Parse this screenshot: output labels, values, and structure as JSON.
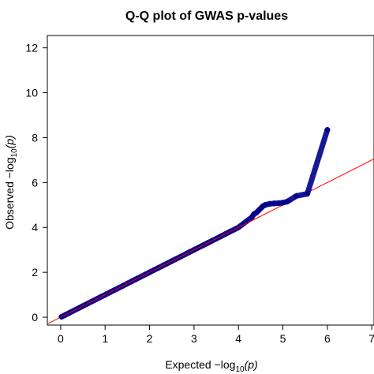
{
  "chart_data": {
    "type": "scatter",
    "title": "Q-Q plot of GWAS p-values",
    "xlabel": {
      "prefix": "Expected  −log",
      "sub": "10",
      "suffix": "(p)"
    },
    "ylabel": {
      "prefix": "Observed  −log",
      "sub": "10",
      "suffix": "(p)"
    },
    "xlim": [
      0,
      7
    ],
    "ylim": [
      0,
      12
    ],
    "x_ticks": [
      0,
      1,
      2,
      3,
      4,
      5,
      6,
      7
    ],
    "y_ticks": [
      0,
      2,
      4,
      6,
      8,
      10,
      12
    ],
    "point_color": "#00008b",
    "line_color": "#ff0000",
    "reference_line": {
      "slope": 1,
      "intercept": 0
    },
    "series": [
      {
        "points": [
          [
            0.02,
            0.02
          ],
          [
            0.1,
            0.1
          ],
          [
            0.2,
            0.2
          ],
          [
            0.3,
            0.3
          ],
          [
            0.4,
            0.4
          ],
          [
            0.5,
            0.5
          ],
          [
            0.6,
            0.6
          ],
          [
            0.7,
            0.7
          ],
          [
            0.8,
            0.8
          ],
          [
            0.9,
            0.9
          ],
          [
            1.0,
            1.0
          ],
          [
            1.1,
            1.1
          ],
          [
            1.2,
            1.2
          ],
          [
            1.3,
            1.3
          ],
          [
            1.4,
            1.4
          ],
          [
            1.5,
            1.5
          ],
          [
            1.6,
            1.6
          ],
          [
            1.7,
            1.7
          ],
          [
            1.8,
            1.8
          ],
          [
            1.9,
            1.9
          ],
          [
            2.0,
            2.0
          ],
          [
            2.1,
            2.1
          ],
          [
            2.2,
            2.2
          ],
          [
            2.3,
            2.3
          ],
          [
            2.4,
            2.4
          ],
          [
            2.5,
            2.5
          ],
          [
            2.6,
            2.6
          ],
          [
            2.7,
            2.7
          ],
          [
            2.8,
            2.8
          ],
          [
            2.9,
            2.9
          ],
          [
            3.0,
            3.0
          ],
          [
            3.1,
            3.1
          ],
          [
            3.2,
            3.2
          ],
          [
            3.3,
            3.3
          ],
          [
            3.4,
            3.4
          ],
          [
            3.5,
            3.5
          ],
          [
            3.6,
            3.6
          ],
          [
            3.7,
            3.7
          ],
          [
            3.8,
            3.8
          ],
          [
            3.9,
            3.9
          ],
          [
            4.0,
            4.0
          ],
          [
            4.1,
            4.15
          ],
          [
            4.2,
            4.3
          ],
          [
            4.3,
            4.45
          ],
          [
            4.35,
            4.6
          ],
          [
            4.4,
            4.65
          ],
          [
            4.45,
            4.75
          ],
          [
            4.5,
            4.85
          ],
          [
            4.55,
            4.95
          ],
          [
            4.6,
            5.0
          ],
          [
            4.7,
            5.05
          ],
          [
            4.8,
            5.07
          ],
          [
            4.9,
            5.08
          ],
          [
            5.0,
            5.1
          ],
          [
            5.1,
            5.15
          ],
          [
            5.3,
            5.4
          ],
          [
            5.55,
            5.5
          ],
          [
            6.0,
            8.35
          ]
        ]
      }
    ]
  }
}
